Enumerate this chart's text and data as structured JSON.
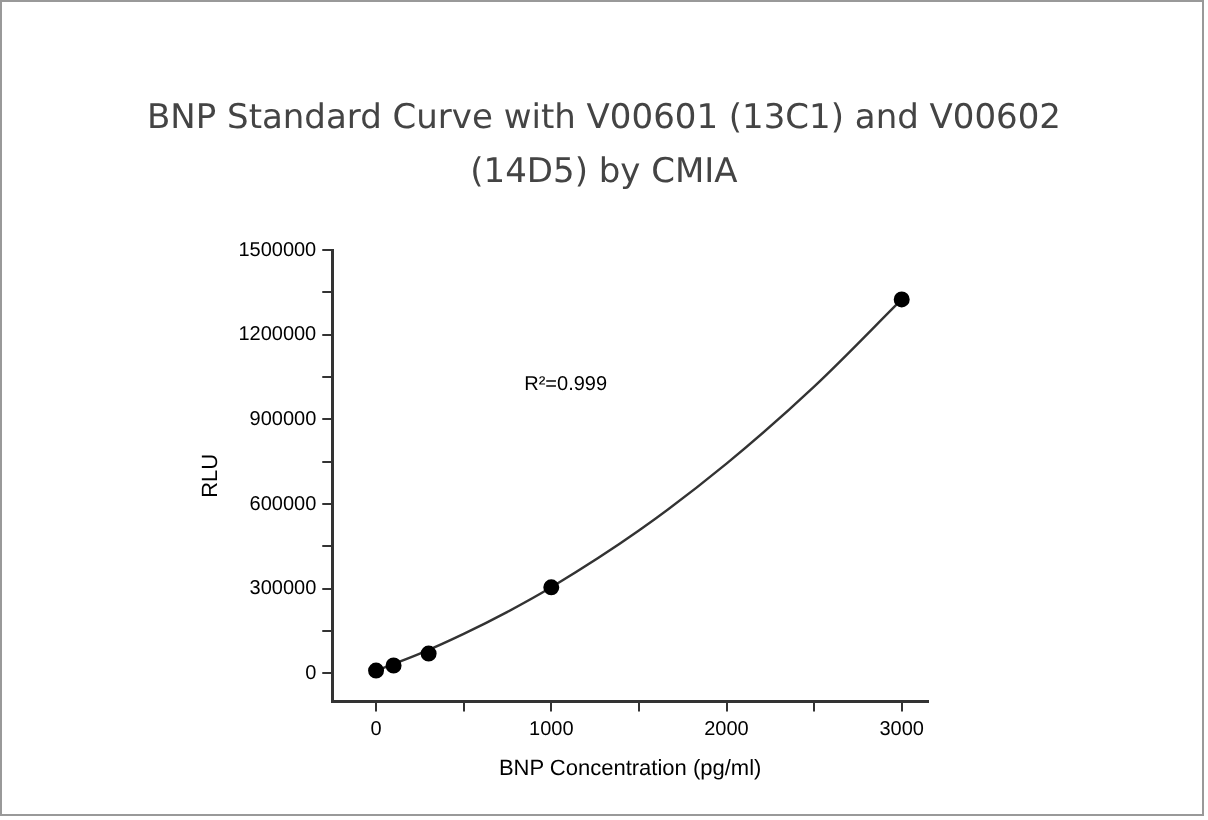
{
  "chart_data": {
    "type": "scatter",
    "title": "BNP Standard Curve with V00601 (13C1) and V00602 (14D5) by CMIA",
    "xlabel": "BNP Concentration (pg/ml)",
    "ylabel": "RLU",
    "annotations": [
      "R²=0.999"
    ],
    "xlim": [
      -250,
      3150
    ],
    "ylim": [
      -100000,
      1500000
    ],
    "xticks": [
      0,
      {
        "value": 500,
        "label": null
      },
      1000,
      {
        "value": 1500,
        "label": null
      },
      2000,
      {
        "value": 2500,
        "label": null
      },
      3000
    ],
    "yticks": [
      0,
      {
        "value": 150000,
        "label": null
      },
      300000,
      {
        "value": 450000,
        "label": null
      },
      600000,
      {
        "value": 750000,
        "label": null
      },
      900000,
      {
        "value": 1050000,
        "label": null
      },
      1200000,
      {
        "value": 1350000,
        "label": null
      },
      1500000
    ],
    "grid": false,
    "legend": false,
    "marker": "circle",
    "series": [
      {
        "color": "#000000",
        "x": [
          0,
          100,
          300,
          1000,
          3000
        ],
        "values": [
          10000,
          28000,
          70000,
          305000,
          1325000
        ]
      },
      {
        "type": "line",
        "color": "#333333",
        "marker": "none",
        "line_style": "solid",
        "x": [
          0,
          250,
          500,
          750,
          1000,
          1500,
          2000,
          2500,
          3000
        ],
        "values": [
          10000,
          70000,
          140000,
          218000,
          305000,
          506000,
          743000,
          1016000,
          1325000
        ]
      }
    ]
  }
}
